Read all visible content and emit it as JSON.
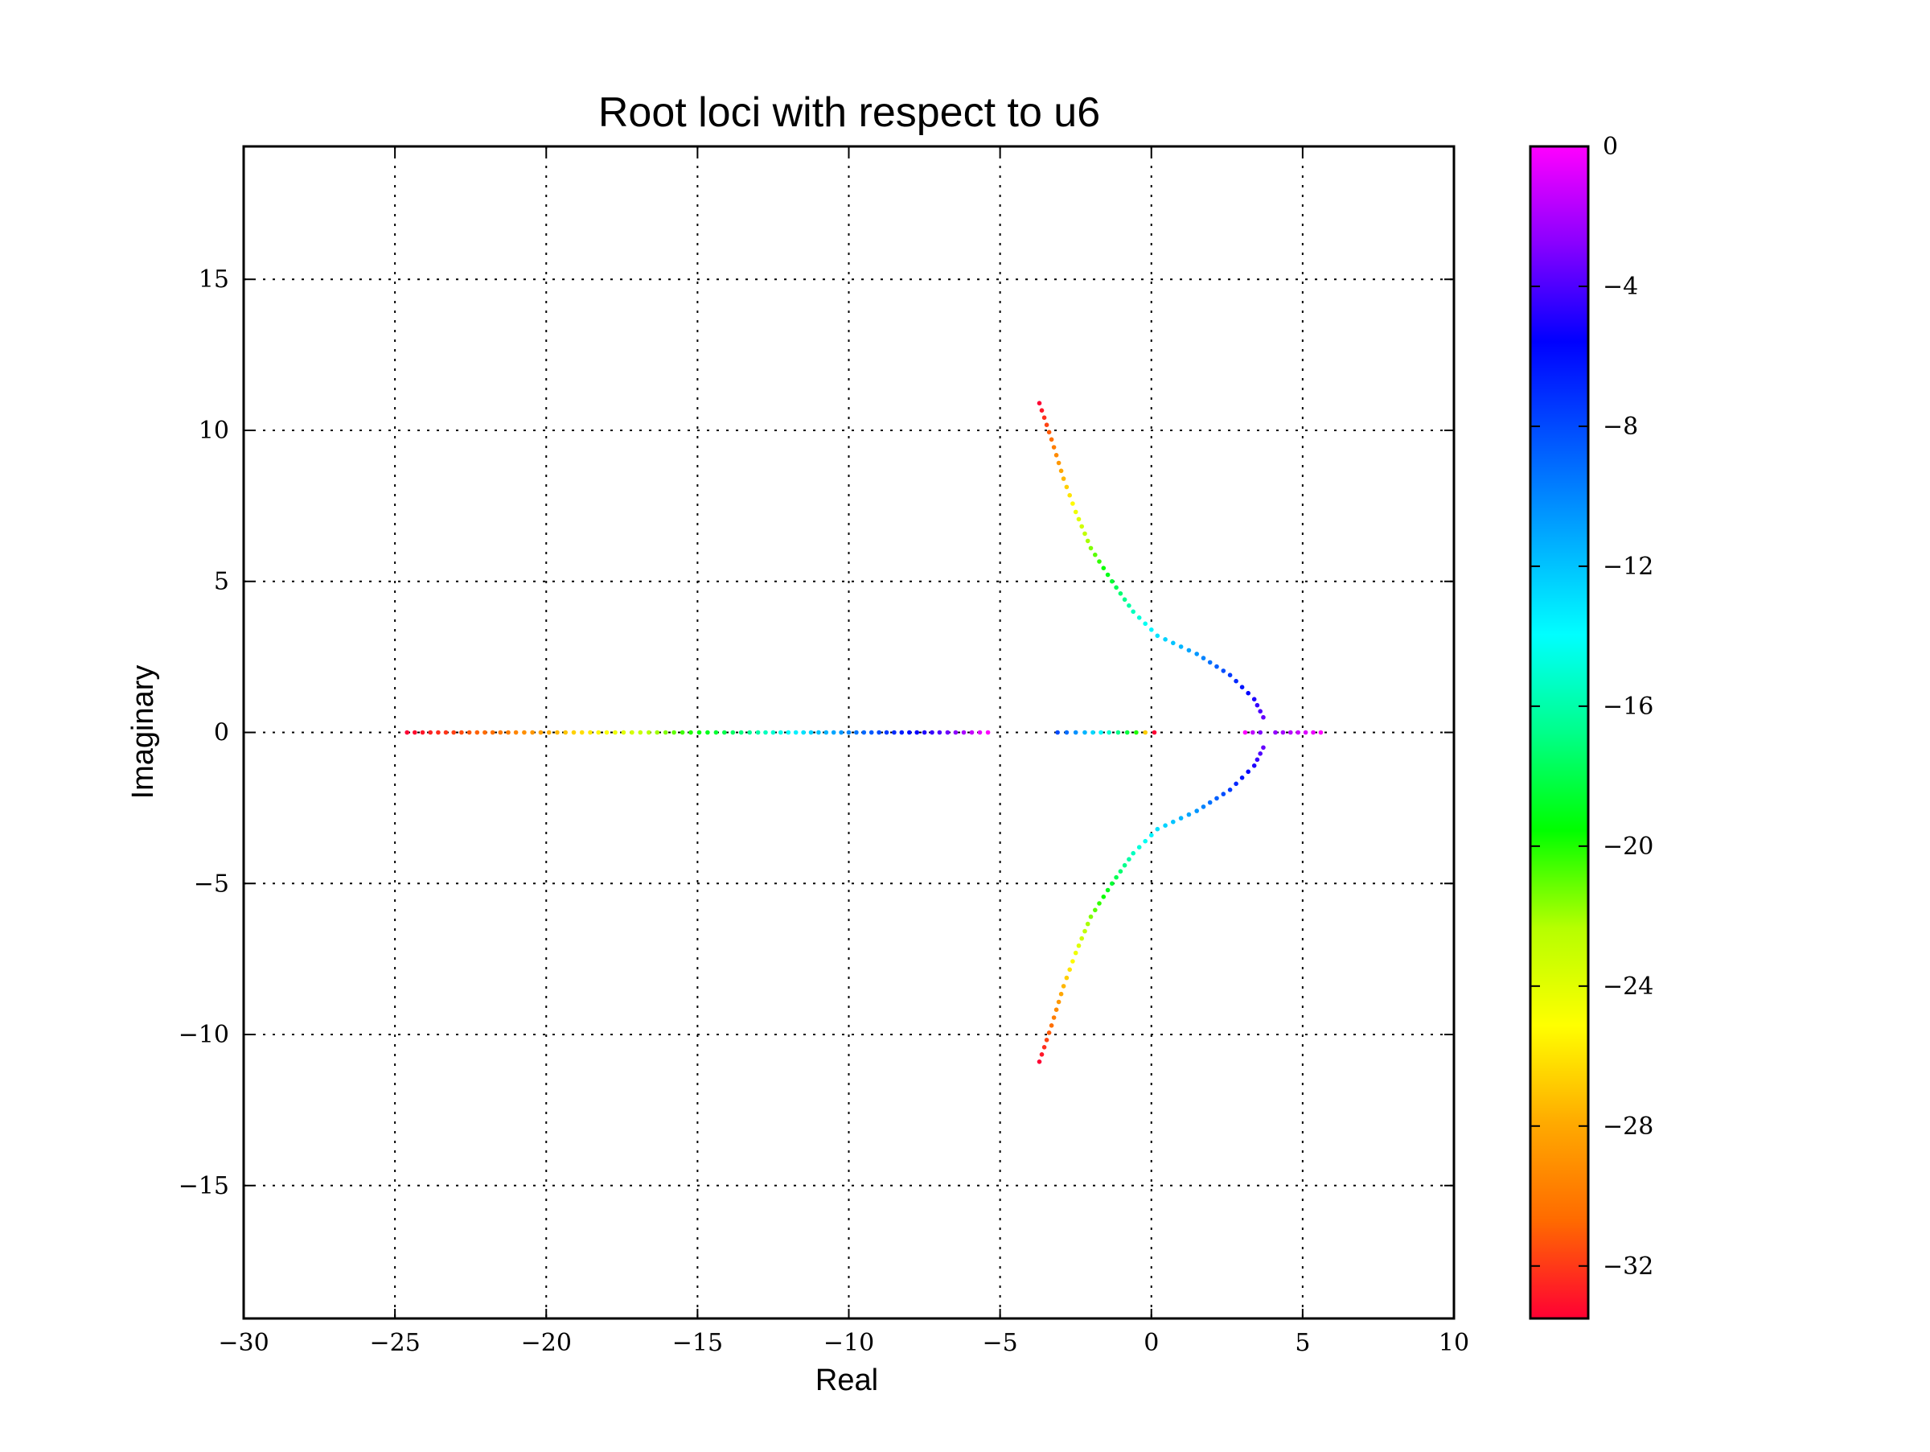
{
  "chart_data": {
    "type": "scatter",
    "title": "Root loci with respect to u6",
    "xlabel": "Real",
    "ylabel": "Imaginary",
    "xlim": [
      -30,
      10
    ],
    "ylim": [
      -19.4,
      19.4
    ],
    "xticks": [
      -30,
      -25,
      -20,
      -15,
      -10,
      -5,
      0,
      5,
      10
    ],
    "xtick_labels": [
      "−30",
      "−25",
      "−20",
      "−15",
      "−10",
      "−5",
      "0",
      "5",
      "10"
    ],
    "yticks": [
      15,
      10,
      5,
      0,
      -5,
      -10,
      -15
    ],
    "ytick_labels": [
      "15",
      "10",
      "5",
      "0",
      "−5",
      "−10",
      "−15"
    ],
    "grid": true,
    "colorbar": {
      "range": [
        -33.5,
        0
      ],
      "ticks": [
        0,
        -4,
        -8,
        -12,
        -16,
        -20,
        -24,
        -28,
        -32
      ],
      "tick_labels": [
        "0",
        "−4",
        "−8",
        "−12",
        "−16",
        "−20",
        "−24",
        "−28",
        "−32"
      ],
      "colormap": [
        "#ff0033",
        "#ff6a00",
        "#ffaa00",
        "#ffff00",
        "#b6ff00",
        "#00ff00",
        "#00ff8a",
        "#00ffff",
        "#00aaff",
        "#0055ff",
        "#0000ff",
        "#8800ff",
        "#ff00ff"
      ]
    },
    "color_value": "u6",
    "series": [
      {
        "points": [
          {
            "x": -3.7,
            "y": 10.9,
            "u6": -33.5
          },
          {
            "x": -3.3,
            "y": 9.7,
            "u6": -30.5
          },
          {
            "x": -2.9,
            "y": 8.4,
            "u6": -27.5
          },
          {
            "x": -2.5,
            "y": 7.3,
            "u6": -24.5
          },
          {
            "x": -2.0,
            "y": 6.1,
            "u6": -21.5
          },
          {
            "x": -1.3,
            "y": 5.0,
            "u6": -18.5
          },
          {
            "x": -0.6,
            "y": 4.0,
            "u6": -15.5
          },
          {
            "x": 0.2,
            "y": 3.2,
            "u6": -13.0
          },
          {
            "x": 1.5,
            "y": 2.6,
            "u6": -10.5
          },
          {
            "x": 2.6,
            "y": 1.9,
            "u6": -7.5
          },
          {
            "x": 3.4,
            "y": 1.1,
            "u6": -5.0
          },
          {
            "x": 3.7,
            "y": 0.5,
            "u6": -3.5
          }
        ]
      },
      {
        "points": [
          {
            "x": -3.7,
            "y": -10.9,
            "u6": -33.5
          },
          {
            "x": -3.3,
            "y": -9.7,
            "u6": -30.5
          },
          {
            "x": -2.9,
            "y": -8.4,
            "u6": -27.5
          },
          {
            "x": -2.5,
            "y": -7.3,
            "u6": -24.5
          },
          {
            "x": -2.0,
            "y": -6.1,
            "u6": -21.5
          },
          {
            "x": -1.3,
            "y": -5.0,
            "u6": -18.5
          },
          {
            "x": -0.6,
            "y": -4.0,
            "u6": -15.5
          },
          {
            "x": 0.2,
            "y": -3.2,
            "u6": -13.0
          },
          {
            "x": 1.5,
            "y": -2.6,
            "u6": -10.5
          },
          {
            "x": 2.6,
            "y": -1.9,
            "u6": -7.5
          },
          {
            "x": 3.4,
            "y": -1.1,
            "u6": -5.0
          },
          {
            "x": 3.7,
            "y": -0.5,
            "u6": -3.5
          }
        ]
      },
      {
        "points": [
          {
            "x": -24.6,
            "y": 0,
            "u6": -33.5
          },
          {
            "x": -21.0,
            "y": 0,
            "u6": -29.5
          },
          {
            "x": -18.0,
            "y": 0,
            "u6": -25.0
          },
          {
            "x": -15.5,
            "y": 0,
            "u6": -20.5
          },
          {
            "x": -13.0,
            "y": 0,
            "u6": -16.0
          },
          {
            "x": -11.0,
            "y": 0,
            "u6": -12.0
          },
          {
            "x": -9.0,
            "y": 0,
            "u6": -8.0
          },
          {
            "x": -7.0,
            "y": 0,
            "u6": -4.0
          },
          {
            "x": -5.4,
            "y": 0,
            "u6": 0.0
          }
        ]
      },
      {
        "points": [
          {
            "x": 0.1,
            "y": 0,
            "u6": -33.5
          },
          {
            "x": -0.5,
            "y": 0,
            "u6": -20.0
          },
          {
            "x": -1.4,
            "y": 0,
            "u6": -15.0
          },
          {
            "x": -2.2,
            "y": 0,
            "u6": -11.5
          },
          {
            "x": -3.1,
            "y": 0,
            "u6": -8.0
          }
        ]
      },
      {
        "points": [
          {
            "x": 3.1,
            "y": 0,
            "u6": 0.0
          },
          {
            "x": 3.6,
            "y": 0,
            "u6": -3.0
          }
        ]
      },
      {
        "points": [
          {
            "x": 4.1,
            "y": 0,
            "u6": -2.5
          },
          {
            "x": 5.6,
            "y": 0,
            "u6": 0.0
          }
        ]
      }
    ]
  }
}
